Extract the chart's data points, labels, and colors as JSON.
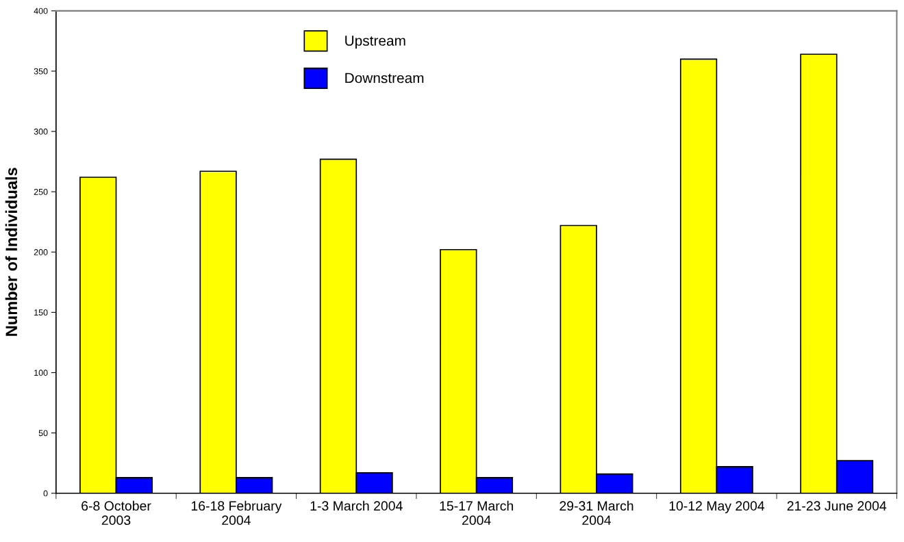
{
  "chart_data": {
    "type": "bar",
    "ylabel": "Number of Individuals",
    "categories": [
      "6-8 October\n2003",
      "16-18 February\n2004",
      "1-3 March 2004",
      "15-17 March\n2004",
      "29-31 March\n2004",
      "10-12 May 2004",
      "21-23 June 2004"
    ],
    "series": [
      {
        "name": "Upstream",
        "color": "#ffff00",
        "values": [
          262,
          267,
          277,
          202,
          222,
          360,
          364
        ]
      },
      {
        "name": "Downstream",
        "color": "#0000ff",
        "values": [
          13,
          13,
          17,
          13,
          16,
          22,
          27
        ]
      }
    ],
    "ylim": [
      0,
      400
    ],
    "yticks": [
      0,
      50,
      100,
      150,
      200,
      250,
      300,
      350,
      400
    ],
    "grid": false,
    "legend": "top"
  }
}
